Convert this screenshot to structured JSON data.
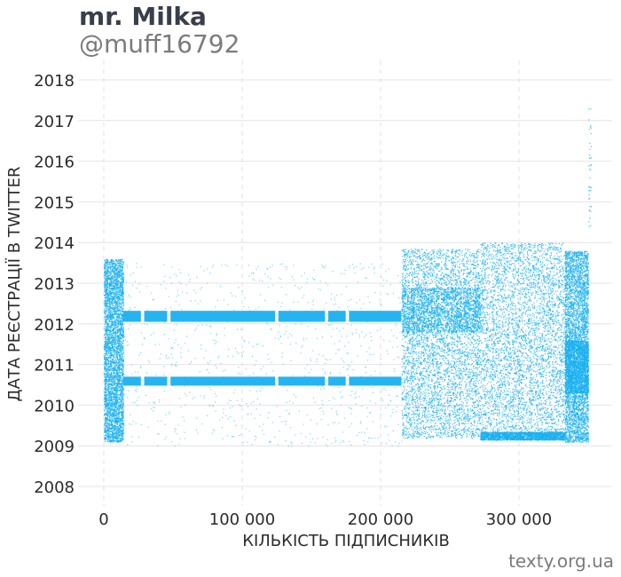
{
  "header": {
    "title": "mr. Milka",
    "subtitle": "@muff16792"
  },
  "footer": {
    "credit": "texty.org.ua"
  },
  "chart_data": {
    "type": "scatter",
    "title": "mr. Milka",
    "subtitle": "@muff16792",
    "xlabel": "КІЛЬКІСТЬ ПІДПИСНИКІВ",
    "ylabel": "ДАТА РЕЄСТРАЦІЇ В TWITTER",
    "xlim": [
      -7000,
      368000
    ],
    "ylim": [
      2007.6,
      2018.4
    ],
    "x_ticks": [
      0,
      100000,
      200000,
      300000
    ],
    "x_tick_labels": [
      "0",
      "100 000",
      "200 000",
      "300 000"
    ],
    "y_ticks": [
      2008,
      2009,
      2010,
      2011,
      2012,
      2013,
      2014,
      2015,
      2016,
      2017,
      2018
    ],
    "y_tick_labels": [
      "2008",
      "2009",
      "2010",
      "2011",
      "2012",
      "2013",
      "2014",
      "2015",
      "2016",
      "2017",
      "2018"
    ],
    "grid": true,
    "point_color": "#1ab0f0",
    "total_followers_approx": 352000,
    "dense_bands": [
      {
        "x_start": 14000,
        "x_end": 215000,
        "y_start": 2012.05,
        "y_end": 2012.32
      },
      {
        "x_start": 14000,
        "x_end": 215000,
        "y_start": 2010.48,
        "y_end": 2010.7
      }
    ],
    "band_gaps_x": [
      28000,
      47000,
      125000,
      161000,
      176000
    ],
    "point_clouds": [
      {
        "x_start": 0,
        "x_end": 14000,
        "y_start": 2009.1,
        "y_end": 2013.6,
        "density": "high"
      },
      {
        "x_start": 14000,
        "x_end": 215000,
        "y_start": 2009.0,
        "y_end": 2013.5,
        "density": "sparse"
      },
      {
        "x_start": 215000,
        "x_end": 272000,
        "y_start": 2009.2,
        "y_end": 2013.85,
        "density": "high"
      },
      {
        "x_start": 272000,
        "x_end": 333000,
        "y_start": 2009.2,
        "y_end": 2014.0,
        "density": "high"
      },
      {
        "x_start": 333000,
        "x_end": 350000,
        "y_start": 2009.1,
        "y_end": 2013.8,
        "density": "high"
      }
    ],
    "notes_visible_clusters": [
      {
        "x_start": 215000,
        "x_end": 272000,
        "y_start": 2011.8,
        "y_end": 2012.9
      },
      {
        "x_start": 272000,
        "x_end": 333000,
        "y_start": 2009.15,
        "y_end": 2009.35
      },
      {
        "x_start": 333000,
        "x_end": 350000,
        "y_start": 2010.3,
        "y_end": 2011.6
      }
    ]
  }
}
